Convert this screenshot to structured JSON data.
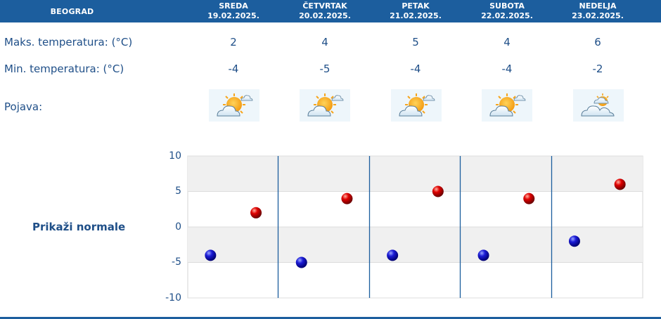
{
  "header": {
    "city": "BEOGRAD"
  },
  "days": [
    {
      "name": "SREDA",
      "date": "19.02.2025.",
      "max": "2",
      "min": "-4"
    },
    {
      "name": "ČETVRTAK",
      "date": "20.02.2025.",
      "max": "4",
      "min": "-5"
    },
    {
      "name": "PETAK",
      "date": "21.02.2025.",
      "max": "5",
      "min": "-4"
    },
    {
      "name": "SUBOTA",
      "date": "22.02.2025.",
      "max": "4",
      "min": "-4"
    },
    {
      "name": "NEDELJA",
      "date": "23.02.2025.",
      "max": "6",
      "min": "-2"
    }
  ],
  "labels": {
    "max_temp": "Maks. temperatura: (°C)",
    "min_temp": "Min. temperatura: (°C)",
    "phenomenon": "Pojava:",
    "show_normals": "Prikaži normale"
  },
  "icons": [
    "sun-behind-cloud-icon",
    "sun-behind-cloud-icon",
    "sun-behind-cloud-icon",
    "sun-behind-cloud-icon",
    "cloud-sun-partly-icon"
  ],
  "chart_data": {
    "type": "scatter",
    "categories": [
      "19.02.2025.",
      "20.02.2025.",
      "21.02.2025.",
      "22.02.2025.",
      "23.02.2025."
    ],
    "series": [
      {
        "values": [
          -4,
          -5,
          -4,
          -4,
          -2
        ],
        "color": "#1010c0"
      },
      {
        "values": [
          2,
          4,
          5,
          4,
          6
        ],
        "color": "#d00000"
      }
    ],
    "ylim": [
      -10,
      10
    ],
    "yticks": [
      "10",
      "5",
      "0",
      "-5",
      "-10"
    ],
    "grid": true
  },
  "colors": {
    "header_bg": "#1c5e9e",
    "text": "#1f4f88",
    "band": "#f0f0f0"
  }
}
